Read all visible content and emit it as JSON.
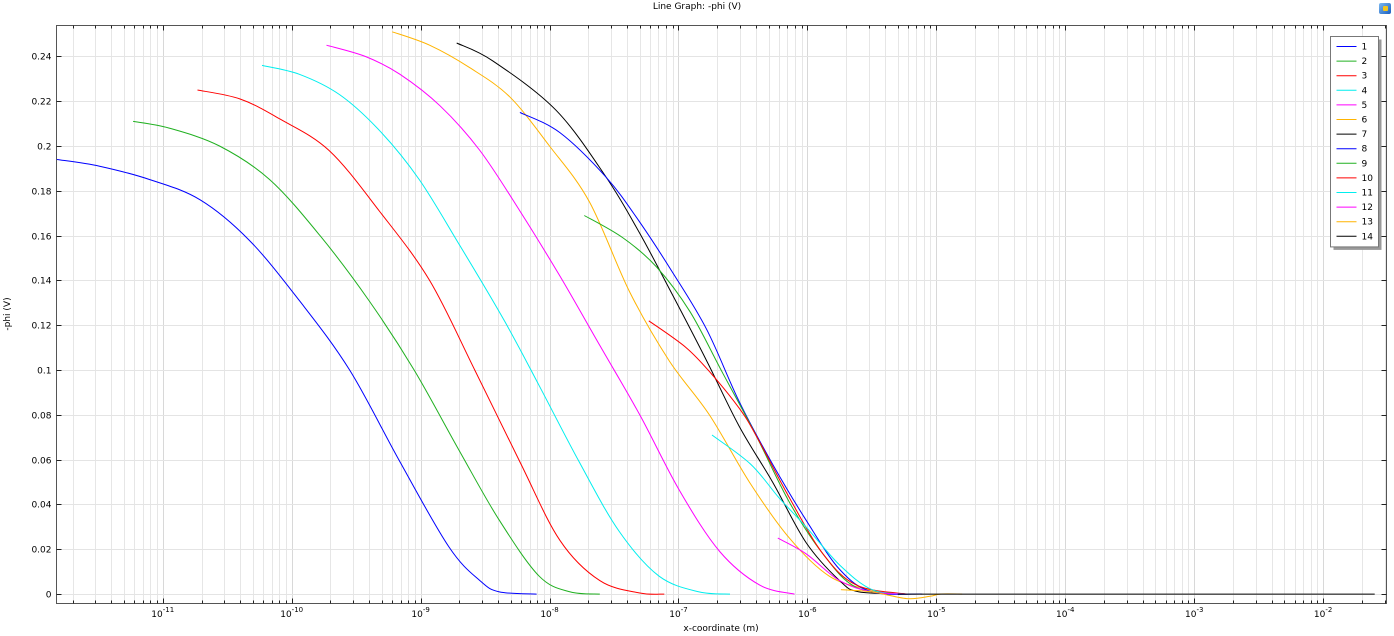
{
  "window": {
    "title": "Line Graph: -phi (V)",
    "snapshot_icon": "image-snapshot-icon"
  },
  "chart_data": {
    "type": "line",
    "title": "Line Graph: -phi (V)",
    "xlabel": "x-coordinate (m)",
    "ylabel": "-phi (V)",
    "xscale": "log",
    "xlim": [
      1.5e-12,
      0.031
    ],
    "ylim": [
      -0.0042,
      0.2538
    ],
    "grid": true,
    "legend_position": "top-right",
    "x_ticks": [
      {
        "base": "10",
        "exp": "-11",
        "value": -11
      },
      {
        "base": "10",
        "exp": "-10",
        "value": -10
      },
      {
        "base": "10",
        "exp": "-9",
        "value": -9
      },
      {
        "base": "10",
        "exp": "-8",
        "value": -8
      },
      {
        "base": "10",
        "exp": "-7",
        "value": -7
      },
      {
        "base": "10",
        "exp": "-6",
        "value": -6
      },
      {
        "base": "10",
        "exp": "-5",
        "value": -5
      },
      {
        "base": "10",
        "exp": "-4",
        "value": -4
      },
      {
        "base": "10",
        "exp": "-3",
        "value": -3
      },
      {
        "base": "10",
        "exp": "-2",
        "value": -2
      }
    ],
    "y_ticks": [
      {
        "label": "0",
        "value": 0
      },
      {
        "label": "0.02",
        "value": 0.02
      },
      {
        "label": "0.04",
        "value": 0.04
      },
      {
        "label": "0.06",
        "value": 0.06
      },
      {
        "label": "0.08",
        "value": 0.08
      },
      {
        "label": "0.1",
        "value": 0.1
      },
      {
        "label": "0.12",
        "value": 0.12
      },
      {
        "label": "0.14",
        "value": 0.14
      },
      {
        "label": "0.16",
        "value": 0.16
      },
      {
        "label": "0.18",
        "value": 0.18
      },
      {
        "label": "0.2",
        "value": 0.2
      },
      {
        "label": "0.22",
        "value": 0.22
      },
      {
        "label": "0.24",
        "value": 0.24
      }
    ],
    "series": [
      {
        "name": "1",
        "color": "#0000ff",
        "log10_x": [
          -11.82,
          -11.49,
          -11.1,
          -10.71,
          -10.33,
          -9.94,
          -9.55,
          -9.16,
          -8.78,
          -8.54,
          -8.39,
          -8.1
        ],
        "y": [
          0.194,
          0.191,
          0.185,
          0.176,
          0.158,
          0.131,
          0.1,
          0.059,
          0.021,
          0.006,
          0.001,
          0
        ]
      },
      {
        "name": "2",
        "color": "#20b020",
        "log10_x": [
          -11.23,
          -10.95,
          -10.56,
          -10.17,
          -9.78,
          -9.4,
          -9.05,
          -8.7,
          -8.39,
          -8.08,
          -7.84,
          -7.61
        ],
        "y": [
          0.211,
          0.208,
          0.2,
          0.185,
          0.16,
          0.131,
          0.1,
          0.064,
          0.033,
          0.008,
          0.001,
          0
        ]
      },
      {
        "name": "3",
        "color": "#ff0000",
        "log10_x": [
          -10.73,
          -10.4,
          -10.09,
          -9.71,
          -9.32,
          -8.93,
          -8.58,
          -8.23,
          -7.92,
          -7.61,
          -7.3,
          -7.11
        ],
        "y": [
          0.225,
          0.221,
          0.212,
          0.198,
          0.171,
          0.14,
          0.1,
          0.059,
          0.024,
          0.006,
          0.0005,
          0
        ]
      },
      {
        "name": "4",
        "color": "#00eeee",
        "log10_x": [
          -10.23,
          -9.94,
          -9.63,
          -9.32,
          -9.01,
          -8.7,
          -8.35,
          -8.08,
          -7.77,
          -7.46,
          -7.15,
          -6.84,
          -6.6
        ],
        "y": [
          0.236,
          0.232,
          0.223,
          0.207,
          0.185,
          0.156,
          0.122,
          0.093,
          0.059,
          0.028,
          0.008,
          0.001,
          0
        ]
      },
      {
        "name": "5",
        "color": "#ff00ff",
        "log10_x": [
          -9.73,
          -9.43,
          -9.16,
          -8.85,
          -8.54,
          -8.23,
          -7.92,
          -7.61,
          -7.3,
          -6.99,
          -6.68,
          -6.37,
          -6.1
        ],
        "y": [
          0.245,
          0.24,
          0.232,
          0.218,
          0.198,
          0.171,
          0.142,
          0.111,
          0.08,
          0.046,
          0.019,
          0.004,
          0
        ]
      },
      {
        "name": "6",
        "color": "#ffb400",
        "log10_x": [
          -9.22,
          -8.93,
          -8.62,
          -8.31,
          -8.0,
          -7.69,
          -7.38,
          -7.07,
          -6.76,
          -6.45,
          -6.14,
          -5.83,
          -5.52,
          -5.29
        ],
        "y": [
          0.251,
          0.245,
          0.235,
          0.222,
          0.2,
          0.175,
          0.135,
          0.104,
          0.08,
          0.05,
          0.025,
          0.008,
          0.002,
          0
        ]
      },
      {
        "name": "7",
        "color": "#000000",
        "log10_x": [
          -8.72,
          -8.44,
          -7.95,
          -7.56,
          -7.3,
          -7.05,
          -6.78,
          -6.53,
          -6.27,
          -6.01,
          -5.75,
          -5.6,
          -5.23
        ],
        "y": [
          0.246,
          0.238,
          0.216,
          0.186,
          0.161,
          0.134,
          0.104,
          0.075,
          0.05,
          0.023,
          0.006,
          0.001,
          0
        ]
      },
      {
        "name": "8",
        "color": "#0000ff",
        "log10_x": [
          -8.23,
          -7.92,
          -7.56,
          -7.3,
          -7.05,
          -6.78,
          -6.53,
          -6.27,
          -6.01,
          -5.75,
          -5.5,
          -5.11
        ],
        "y": [
          0.215,
          0.206,
          0.186,
          0.166,
          0.144,
          0.118,
          0.086,
          0.058,
          0.033,
          0.011,
          0.001,
          0
        ]
      },
      {
        "name": "9",
        "color": "#20b020",
        "log10_x": [
          -7.73,
          -7.43,
          -7.17,
          -6.91,
          -6.66,
          -6.4,
          -6.14,
          -5.88,
          -5.62,
          -5.23
        ],
        "y": [
          0.169,
          0.159,
          0.146,
          0.126,
          0.099,
          0.071,
          0.041,
          0.018,
          0.003,
          0
        ]
      },
      {
        "name": "10",
        "color": "#ff0000",
        "log10_x": [
          -7.23,
          -6.94,
          -6.74,
          -6.53,
          -6.4,
          -6.14,
          -5.88,
          -5.62,
          -5.23
        ],
        "y": [
          0.122,
          0.11,
          0.098,
          0.083,
          0.071,
          0.043,
          0.018,
          0.004,
          0
        ]
      },
      {
        "name": "11",
        "color": "#00eeee",
        "log10_x": [
          -6.74,
          -6.44,
          -6.22,
          -6.01,
          -5.75,
          -5.5,
          -5.23
        ],
        "y": [
          0.071,
          0.058,
          0.043,
          0.03,
          0.013,
          0.002,
          0
        ]
      },
      {
        "name": "12",
        "color": "#ff00ff",
        "log10_x": [
          -6.23,
          -6.01,
          -5.75,
          -5.5,
          -5.23
        ],
        "y": [
          0.025,
          0.018,
          0.006,
          0.001,
          0
        ]
      },
      {
        "name": "13",
        "color": "#ffb400",
        "log10_x": [
          -5.74,
          -5.5,
          -5.23,
          -5.05,
          -4.97,
          -4.8
        ],
        "y": [
          0.002,
          0.001,
          -0.002,
          -0.001,
          0,
          0
        ]
      },
      {
        "name": "14",
        "color": "#000000",
        "log10_x": [
          -5.3,
          -4.0,
          -3.0,
          -2.0,
          -1.6
        ],
        "y": [
          0,
          0,
          0,
          0,
          0
        ]
      }
    ]
  }
}
